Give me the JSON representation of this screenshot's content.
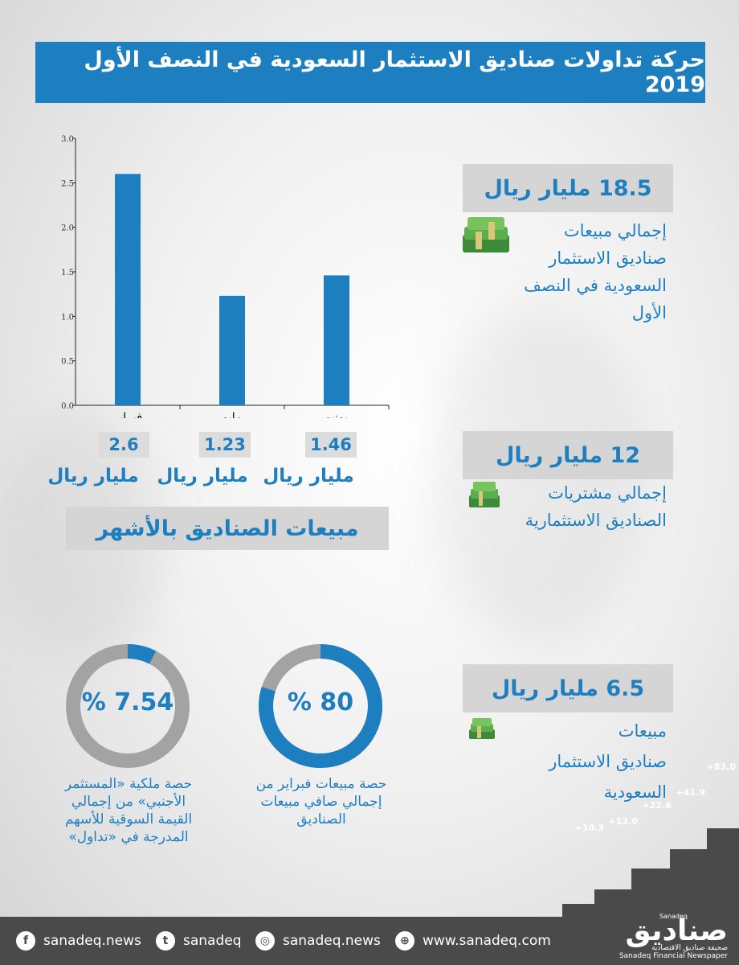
{
  "title": "حركة تداولات صناديق الاستثمار السعودية في النصف الأول 2019",
  "chart_data": {
    "type": "bar",
    "categories": [
      "فبراير",
      "مايو",
      "يونيو"
    ],
    "values": [
      2.6,
      1.23,
      1.46
    ],
    "ylim": [
      0,
      3.0
    ],
    "yticks": [
      "0.0",
      "0.5",
      "1.0",
      "1.5",
      "2.0",
      "2.5",
      "3.0"
    ],
    "grid": false,
    "color": "#1e7fc0",
    "value_labels": [
      "2.6",
      "1.23",
      "1.46"
    ],
    "unit_label": "مليار ريال",
    "caption": "مبيعات الصناديق بالأشهر"
  },
  "stats": [
    {
      "value": "18.5 مليار ريال",
      "desc_lines": [
        "إجمالي مبيعات",
        "صناديق الاستثمار",
        "السعودية في النصف",
        "الأول"
      ]
    },
    {
      "value": "12 مليار ريال",
      "desc_lines": [
        "إجمالي مشتريات",
        "الصناديق الاستثمارية"
      ]
    },
    {
      "value": "6.5 مليار ريال",
      "desc_lines": [
        "مبيعات",
        "صناديق الاستثمار",
        "السعودية"
      ]
    }
  ],
  "donuts": [
    {
      "label": "% 80",
      "fraction": 0.8,
      "desc_lines": [
        "حصة مبيعات فبراير من",
        "إجمالي صافي مبيعات",
        "الصناديق"
      ]
    },
    {
      "label": "% 7.54",
      "fraction": 0.0754,
      "desc_lines": [
        "حصة ملكية «المستثمر",
        "الأجنبي» من إجمالي",
        "القيمة السوقية للأسهم",
        "المدرجة في «تداول»"
      ]
    }
  ],
  "colors": {
    "accent": "#1e7fc0",
    "track": "#a3a3a3",
    "banner": "#d5d5d5",
    "footer": "#4a4a4a"
  },
  "footer": {
    "facebook": "sanadeq.news",
    "twitter": "sanadeq",
    "instagram": "sanadeq.news",
    "website": "www.sanadeq.com"
  },
  "steps": [
    "+10.3",
    "+12.0",
    "+22.6",
    "+41.9",
    "+83.0"
  ],
  "logo": {
    "name": "صناديق",
    "en_top": "Sanadeq",
    "subtitle_ar": "صحيفة صناديق الاقتصادية",
    "subtitle_en": "Sanadeq Financial Newspaper"
  }
}
